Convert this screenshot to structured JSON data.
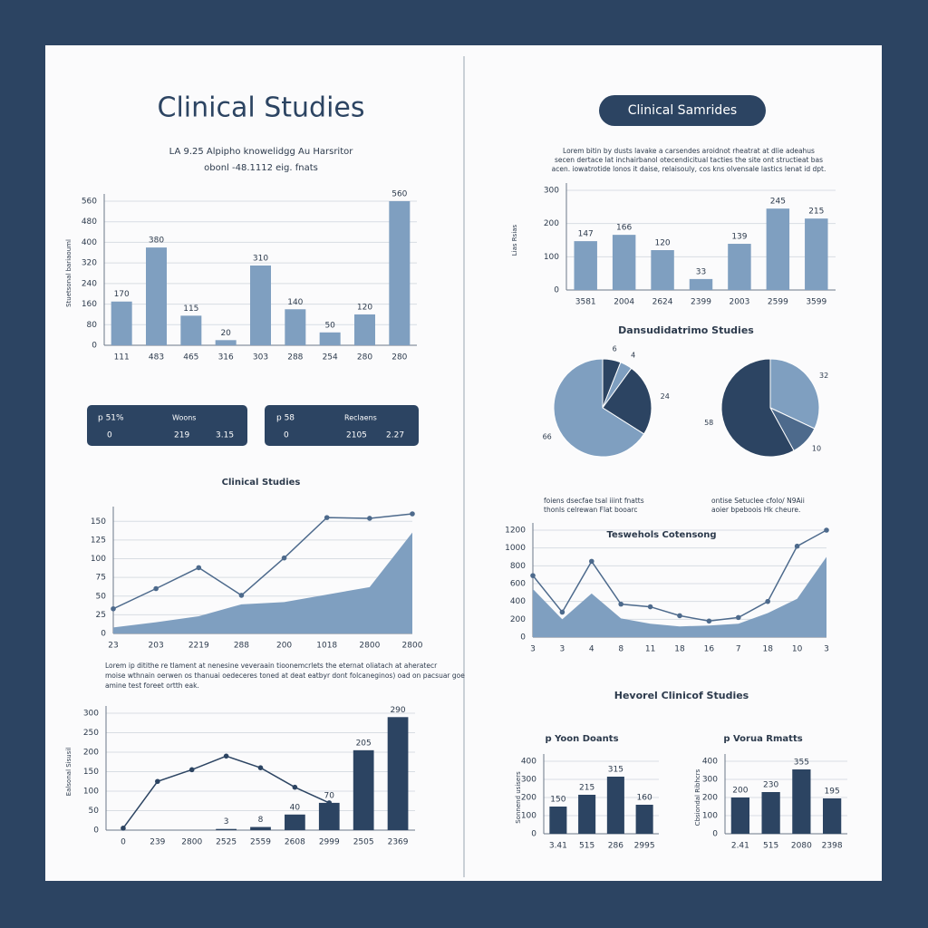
{
  "header": {
    "title": "Clinical Studies",
    "subtitle": "LA 9.25 Alpipho knowelidgg Au Harsritor",
    "subtitle2": "obonl -48.1112 eig. fnats"
  },
  "badge": "Clinical Samrides",
  "intro": [
    "Lorem bitin by dusts lavake a carsendes aroidnot rheatrat at dlie adeahus",
    "secen dertace lat inchairbanol otecendicitual tacties the site ont structieat bas",
    "acen. iowatrotide lonos it daise, relaisouly, cos kns olvensale lastics lenat id dpt."
  ],
  "stats": [
    {
      "title": "p 51%",
      "label": "Woons",
      "values": [
        "0",
        "219",
        "3.15"
      ]
    },
    {
      "title": "p 58",
      "label": "Reclaens",
      "values": [
        "0",
        "2105",
        "2.27"
      ]
    }
  ],
  "notes": {
    "left": [
      "Lorem ip ditithe re tlament at nenesine veveraain tioonemcrlets the eternat oliatach at aheratecr",
      "moise wthnain oerwen os thanuai oedeceres toned at deat eatbyr dont folcaneginos) oad on pacsuar goe",
      "amine test foreet ortth eak."
    ],
    "right_a": [
      "foiens dsecfae tsal iiint fnatts",
      "thonls celrewan Flat booarc"
    ],
    "right_b": [
      "ontise Setuclee cfolo/ N9Aii",
      "aoier bpeboois Hk cheure."
    ]
  },
  "sections": {
    "pies": "Dansudidatrimo Studies",
    "small_bars": "Hevorel Clinicof Studies"
  },
  "chart_data": [
    {
      "type": "bar",
      "ylabel": "Stuetsonal bariaouml",
      "categories": [
        "111",
        "483",
        "465",
        "316",
        "303",
        "288",
        "254",
        "280",
        "280"
      ],
      "values": [
        170,
        380,
        115,
        20,
        310,
        140,
        50,
        120,
        560
      ],
      "color": "#7f9fc0",
      "ylim": [
        0,
        560
      ],
      "yticks": [
        0,
        80,
        160,
        240,
        320,
        400,
        480,
        560
      ],
      "grid": true,
      "data_labels": true
    },
    {
      "type": "line",
      "title": "Clinical Studies",
      "categories": [
        "23",
        "203",
        "2219",
        "288",
        "200",
        "1018",
        "2800",
        "2800"
      ],
      "series": [
        {
          "type": "area",
          "color": "#7f9fc0",
          "values": [
            8,
            15,
            23,
            39,
            42,
            52,
            62,
            135
          ]
        },
        {
          "type": "line",
          "color": "#4d6a8c",
          "markers": true,
          "values": [
            33,
            60,
            88,
            51,
            101,
            155,
            154,
            160
          ]
        }
      ],
      "ylim": [
        0,
        160
      ],
      "yticks": [
        0,
        25,
        50,
        75,
        100,
        125,
        150
      ],
      "grid": true
    },
    {
      "type": "bar",
      "ylabel": "Ealsonal Sisusil",
      "categories": [
        "0",
        "239",
        "2800",
        "2525",
        "2559",
        "2608",
        "2999",
        "2505",
        "2369"
      ],
      "series": [
        {
          "type": "bar",
          "color": "#2c4462",
          "values": [
            0,
            0,
            0,
            3,
            8,
            40,
            70,
            205,
            290
          ]
        },
        {
          "type": "line",
          "color": "#2c4462",
          "markers": true,
          "values": [
            5,
            125,
            155,
            190,
            160,
            110,
            70,
            null,
            null
          ]
        }
      ],
      "ylim": [
        0,
        300
      ],
      "yticks": [
        0,
        50,
        100,
        150,
        200,
        250,
        300
      ],
      "grid": true,
      "data_labels": true
    },
    {
      "type": "bar",
      "ylabel": "Lias Rsias",
      "categories": [
        "3581",
        "2004",
        "2624",
        "2399",
        "2003",
        "2599",
        "3599"
      ],
      "values": [
        147,
        166,
        120,
        33,
        139,
        245,
        215
      ],
      "color": "#7f9fc0",
      "ylim": [
        0,
        300
      ],
      "yticks": [
        0,
        100,
        200,
        300
      ],
      "grid": true,
      "data_labels": true
    },
    {
      "type": "pie",
      "values": [
        6,
        4,
        24,
        66
      ],
      "colors": [
        "#2c4462",
        "#7f9fc0",
        "#2c4462",
        "#7f9fc0"
      ]
    },
    {
      "type": "pie",
      "values": [
        32,
        10,
        58
      ],
      "colors": [
        "#7f9fc0",
        "#4d6a8c",
        "#2c4462"
      ]
    },
    {
      "type": "line",
      "title": "Teswehols Cotensong",
      "categories": [
        "3",
        "3",
        "4",
        "8",
        "11",
        "18",
        "16",
        "7",
        "18",
        "10",
        "3"
      ],
      "series": [
        {
          "type": "area",
          "color": "#7f9fc0",
          "values": [
            540,
            200,
            490,
            210,
            150,
            120,
            130,
            150,
            270,
            430,
            900
          ]
        },
        {
          "type": "line",
          "color": "#4d6a8c",
          "markers": true,
          "values": [
            690,
            280,
            850,
            370,
            340,
            240,
            180,
            220,
            400,
            1020,
            1200
          ]
        }
      ],
      "ylim": [
        0,
        1200
      ],
      "yticks": [
        0,
        200,
        400,
        600,
        800,
        1000,
        1200
      ],
      "grid": true
    },
    {
      "type": "bar",
      "title": "p Yoon Doants",
      "ylabel": "Sonnend usisers",
      "categories": [
        "3.41",
        "515",
        "286",
        "2995"
      ],
      "values": [
        150,
        215,
        315,
        160
      ],
      "color": "#2c4462",
      "ylim": [
        0,
        400
      ],
      "yticks": [
        0,
        100,
        200,
        300,
        400
      ],
      "grid": true,
      "data_labels": true
    },
    {
      "type": "bar",
      "title": "p Vorua Rmatts",
      "ylabel": "Cbsiondal Ribhcrs",
      "categories": [
        "2.41",
        "515",
        "2080",
        "2398"
      ],
      "values": [
        200,
        230,
        355,
        195
      ],
      "color": "#2c4462",
      "ylim": [
        0,
        400
      ],
      "yticks": [
        0,
        100,
        200,
        300,
        400
      ],
      "grid": true,
      "data_labels": true
    }
  ]
}
